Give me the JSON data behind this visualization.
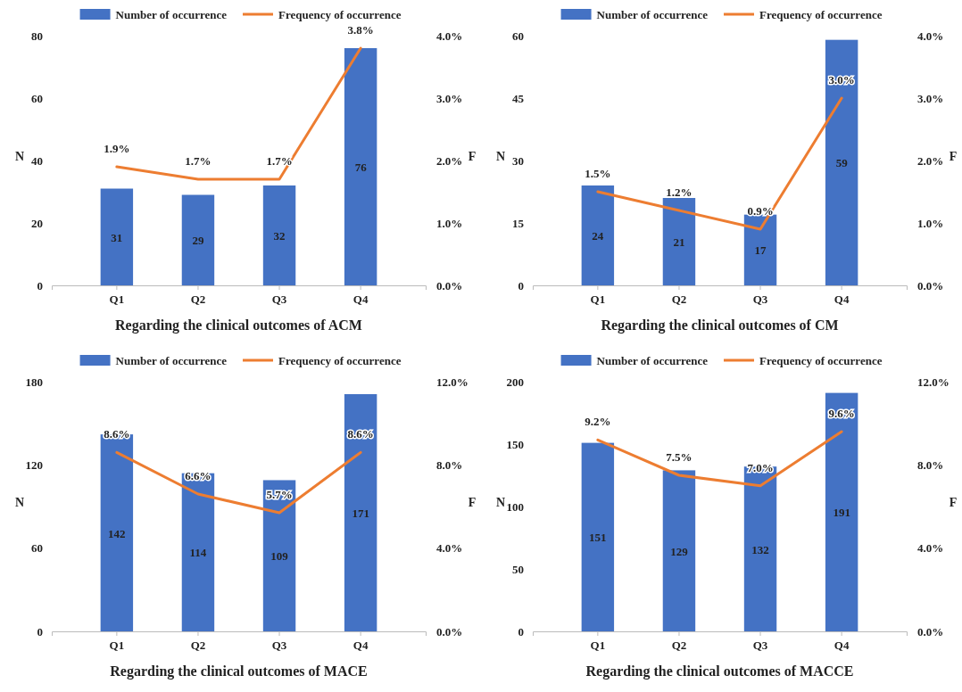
{
  "chart_data": [
    {
      "type": "bar",
      "xlabel": "Regarding the clinical outcomes of ACM",
      "ylabel": "N",
      "y2label": "F",
      "categories": [
        "Q1",
        "Q2",
        "Q3",
        "Q4"
      ],
      "legend": "top",
      "ylim": [
        0,
        80
      ],
      "yticks": [
        0,
        20,
        40,
        60,
        80
      ],
      "y2lim": [
        0,
        4
      ],
      "y2ticks": [
        {
          "value": 0,
          "label": "0.0%"
        },
        {
          "value": 1,
          "label": "1.0%"
        },
        {
          "value": 2,
          "label": "2.0%"
        },
        {
          "value": 3,
          "label": "3.0%"
        },
        {
          "value": 4,
          "label": "4.0%"
        }
      ],
      "series": [
        {
          "name": "Number of occurrence",
          "color": "#4472c4",
          "values": [
            31,
            29,
            32,
            76
          ],
          "value_labels": [
            "31",
            "29",
            "32",
            "76"
          ]
        },
        {
          "name": "Frequency of occurrence",
          "type": "line",
          "axis": "y2",
          "color": "#ed7d31",
          "values": [
            1.9,
            1.7,
            1.7,
            3.8
          ],
          "value_labels": [
            "1.9%",
            "1.7%",
            "1.7%",
            "3.8%"
          ]
        }
      ]
    },
    {
      "type": "bar",
      "xlabel": "Regarding the clinical outcomes of CM",
      "ylabel": "N",
      "y2label": "F",
      "categories": [
        "Q1",
        "Q2",
        "Q3",
        "Q4"
      ],
      "legend": "top",
      "ylim": [
        0,
        60
      ],
      "yticks": [
        0,
        15,
        30,
        45,
        60
      ],
      "y2lim": [
        0,
        4
      ],
      "y2ticks": [
        {
          "value": 0,
          "label": "0.0%"
        },
        {
          "value": 1,
          "label": "1.0%"
        },
        {
          "value": 2,
          "label": "2.0%"
        },
        {
          "value": 3,
          "label": "3.0%"
        },
        {
          "value": 4,
          "label": "4.0%"
        }
      ],
      "series": [
        {
          "name": "Number of occurrence",
          "color": "#4472c4",
          "values": [
            24,
            21,
            17,
            59
          ],
          "value_labels": [
            "24",
            "21",
            "17",
            "59"
          ]
        },
        {
          "name": "Frequency of occurrence",
          "type": "line",
          "axis": "y2",
          "color": "#ed7d31",
          "values": [
            1.5,
            1.2,
            0.9,
            3.0
          ],
          "value_labels": [
            "1.5%",
            "1.2%",
            "0.9%",
            "3.0%"
          ]
        }
      ]
    },
    {
      "type": "bar",
      "xlabel": "Regarding the clinical outcomes of MACE",
      "ylabel": "N",
      "y2label": "F",
      "categories": [
        "Q1",
        "Q2",
        "Q3",
        "Q4"
      ],
      "legend": "top",
      "ylim": [
        0,
        180
      ],
      "yticks": [
        0,
        60,
        120,
        180
      ],
      "y2lim": [
        0,
        12
      ],
      "y2ticks": [
        {
          "value": 0,
          "label": "0.0%"
        },
        {
          "value": 4,
          "label": "4.0%"
        },
        {
          "value": 8,
          "label": "8.0%"
        },
        {
          "value": 12,
          "label": "12.0%"
        }
      ],
      "series": [
        {
          "name": "Number of occurrence",
          "color": "#4472c4",
          "values": [
            142,
            114,
            109,
            171
          ],
          "value_labels": [
            "142",
            "114",
            "109",
            "171"
          ]
        },
        {
          "name": "Frequency of occurrence",
          "type": "line",
          "axis": "y2",
          "color": "#ed7d31",
          "values": [
            8.6,
            6.6,
            5.7,
            8.6
          ],
          "value_labels": [
            "8.6%",
            "6.6%",
            "5.7%",
            "8.6%"
          ]
        }
      ]
    },
    {
      "type": "bar",
      "xlabel": "Regarding the clinical outcomes of MACCE",
      "ylabel": "N",
      "y2label": "F",
      "categories": [
        "Q1",
        "Q2",
        "Q3",
        "Q4"
      ],
      "legend": "top",
      "ylim": [
        0,
        200
      ],
      "yticks": [
        0,
        50,
        100,
        150,
        200
      ],
      "y2lim": [
        0,
        12
      ],
      "y2ticks": [
        {
          "value": 0,
          "label": "0.0%"
        },
        {
          "value": 4,
          "label": "4.0%"
        },
        {
          "value": 8,
          "label": "8.0%"
        },
        {
          "value": 12,
          "label": "12.0%"
        }
      ],
      "series": [
        {
          "name": "Number of occurrence",
          "color": "#4472c4",
          "values": [
            151,
            129,
            132,
            191
          ],
          "value_labels": [
            "151",
            "129",
            "132",
            "191"
          ]
        },
        {
          "name": "Frequency of occurrence",
          "type": "line",
          "axis": "y2",
          "color": "#ed7d31",
          "values": [
            9.2,
            7.5,
            7.0,
            9.6
          ],
          "value_labels": [
            "9.2%",
            "7.5%",
            "7.0%",
            "9.6%"
          ]
        }
      ]
    }
  ]
}
